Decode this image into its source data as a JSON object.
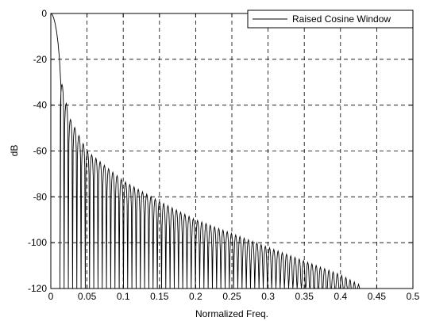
{
  "chart_data": {
    "type": "line",
    "title": "",
    "xlabel": "Normalized Freq.",
    "ylabel": "dB",
    "xlim": [
      0,
      0.5
    ],
    "ylim": [
      -120,
      0
    ],
    "x_ticks": [
      "0",
      "0.05",
      "0.1",
      "0.15",
      "0.2",
      "0.25",
      "0.3",
      "0.35",
      "0.4",
      "0.45",
      "0.5"
    ],
    "y_ticks": [
      "0",
      "-20",
      "-40",
      "-60",
      "-80",
      "-100",
      "-120"
    ],
    "grid": true,
    "legend_position": "top-right",
    "series": [
      {
        "name": "Raised Cosine Window",
        "color": "#000000",
        "mainlobe": [
          [
            0,
            0
          ],
          [
            0.002,
            -0.5
          ],
          [
            0.004,
            -2
          ],
          [
            0.006,
            -4.5
          ],
          [
            0.008,
            -8
          ],
          [
            0.01,
            -13
          ],
          [
            0.012,
            -20
          ],
          [
            0.014,
            -32
          ]
        ],
        "sidelobe_peak_envelope": [
          [
            0.016,
            -31
          ],
          [
            0.025,
            -45
          ],
          [
            0.05,
            -60
          ],
          [
            0.1,
            -73
          ],
          [
            0.15,
            -82
          ],
          [
            0.2,
            -90
          ],
          [
            0.25,
            -96
          ],
          [
            0.3,
            -102
          ],
          [
            0.35,
            -108
          ],
          [
            0.4,
            -114
          ],
          [
            0.43,
            -119
          ]
        ],
        "null_spacing": 0.00585,
        "first_null": 0.0125,
        "null_floor": -120,
        "end_x": 0.43
      }
    ]
  }
}
